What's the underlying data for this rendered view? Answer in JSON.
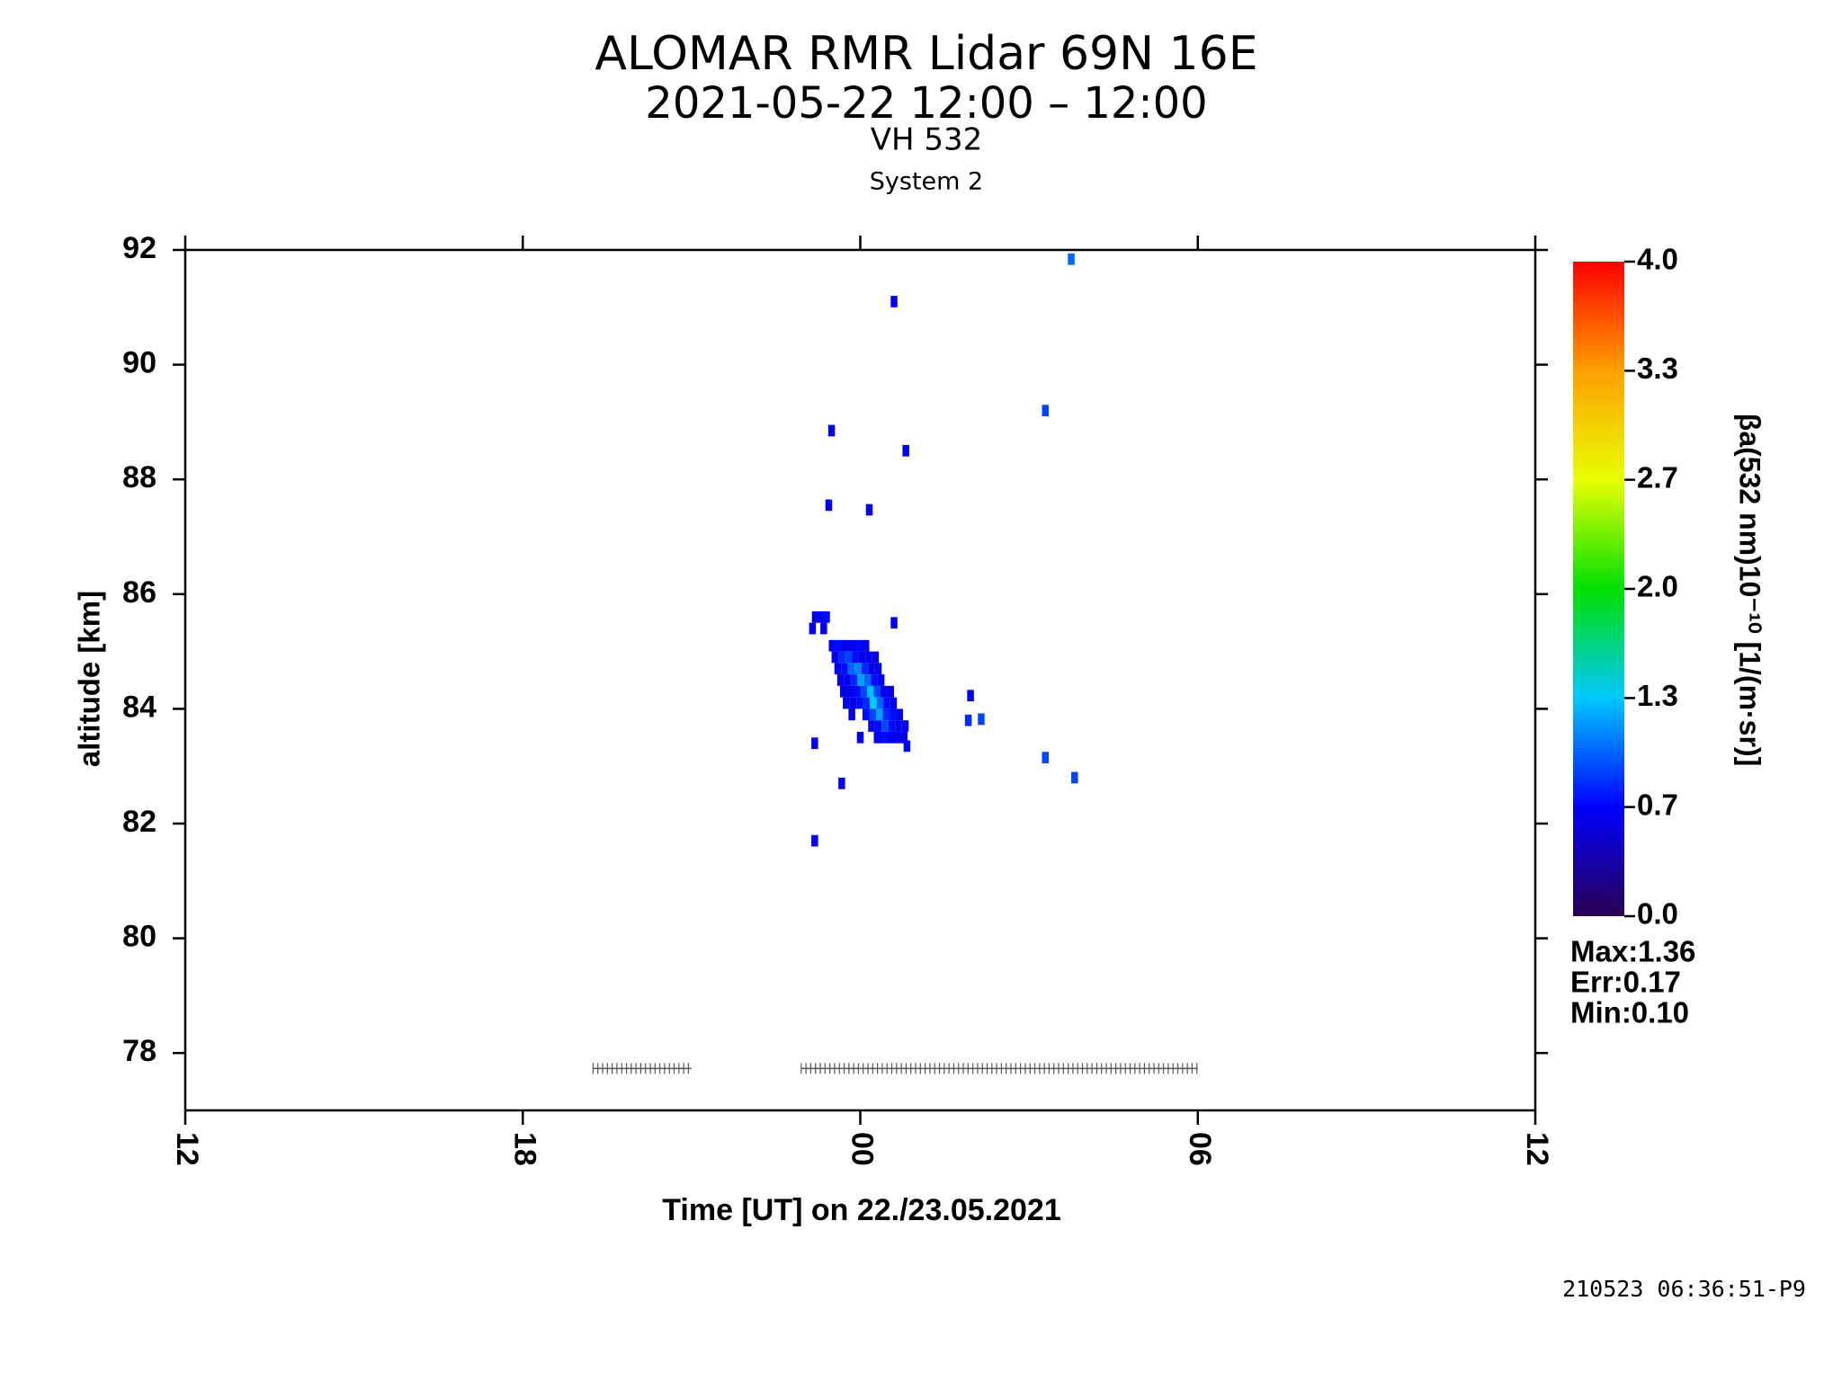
{
  "chart_data": {
    "type": "heatmap",
    "title": "ALOMAR RMR Lidar 69N 16E",
    "subtitle": "2021-05-22 12:00 – 12:00",
    "channel": "VH 532",
    "system": "System 2",
    "xlabel": "Time [UT] on 22./23.05.2021",
    "ylabel": "altitude [km]",
    "colorbar_label": "βa(532 nm)10⁻¹⁰ [1/(m·sr)]",
    "stats": [
      "Max:1.36",
      "Err:0.17",
      "Min:0.10"
    ],
    "footer": "210523 06:36:51-P9",
    "xlim": [
      0,
      24
    ],
    "xticks": [
      {
        "value": 0,
        "label": "12"
      },
      {
        "value": 6,
        "label": "18"
      },
      {
        "value": 12,
        "label": "00"
      },
      {
        "value": 18,
        "label": "06"
      },
      {
        "value": 24,
        "label": "12"
      }
    ],
    "ylim": [
      77,
      92
    ],
    "yticks": [
      78,
      80,
      82,
      84,
      86,
      88,
      90,
      92
    ],
    "clim": [
      0,
      4
    ],
    "cticks": [
      {
        "value": 0,
        "label": "0.0"
      },
      {
        "value": 0.667,
        "label": "0.7"
      },
      {
        "value": 1.333,
        "label": "1.3"
      },
      {
        "value": 2,
        "label": "2.0"
      },
      {
        "value": 2.667,
        "label": "2.7"
      },
      {
        "value": 3.333,
        "label": "3.3"
      },
      {
        "value": 4,
        "label": "4.0"
      }
    ],
    "colormap": [
      "#2a0050",
      "#0000ff",
      "#00c8ff",
      "#00e000",
      "#e8ff00",
      "#ffa000",
      "#ff0000"
    ],
    "profile_ranges": [
      [
        7.25,
        9.0
      ],
      [
        10.95,
        18.0
      ]
    ],
    "profile_altitude": 77.73,
    "cells": {
      "x": [
        15.75,
        12.6,
        15.29,
        11.49,
        12.81,
        11.44,
        12.16,
        12.6,
        13.96,
        13.92,
        14.15,
        11.19,
        15.29,
        15.81,
        11.67,
        11.19,
        12.83,
        11.2,
        11.3,
        11.4,
        11.15,
        11.35,
        11.5,
        11.62,
        11.74,
        11.86,
        11.98,
        12.1,
        11.55,
        11.67,
        11.79,
        11.91,
        12.03,
        12.15,
        12.27,
        11.6,
        11.72,
        11.84,
        11.96,
        12.08,
        12.2,
        12.32,
        11.65,
        11.77,
        11.89,
        12.01,
        12.13,
        12.25,
        12.37,
        11.7,
        11.82,
        11.94,
        12.06,
        12.18,
        12.3,
        12.42,
        12.54,
        11.75,
        11.87,
        11.99,
        12.11,
        12.23,
        12.35,
        12.47,
        12.59,
        11.85,
        12.1,
        12.22,
        12.34,
        12.46,
        12.58,
        12.7,
        12.2,
        12.32,
        12.44,
        12.56,
        12.68,
        12.8,
        12.0,
        12.3,
        12.42,
        12.54,
        12.66,
        12.78
      ],
      "y": [
        91.84,
        91.1,
        89.2,
        88.85,
        88.5,
        87.55,
        87.47,
        85.5,
        84.23,
        83.8,
        83.82,
        83.4,
        83.15,
        82.8,
        82.7,
        81.7,
        83.35,
        85.6,
        85.6,
        85.6,
        85.4,
        85.4,
        85.1,
        85.1,
        85.1,
        85.1,
        85.1,
        85.1,
        84.9,
        84.9,
        84.9,
        84.9,
        84.9,
        84.9,
        84.9,
        84.7,
        84.7,
        84.7,
        84.7,
        84.7,
        84.7,
        84.7,
        84.5,
        84.5,
        84.5,
        84.5,
        84.5,
        84.5,
        84.5,
        84.3,
        84.3,
        84.3,
        84.3,
        84.3,
        84.3,
        84.3,
        84.3,
        84.1,
        84.1,
        84.1,
        84.1,
        84.1,
        84.1,
        84.1,
        84.1,
        83.9,
        83.9,
        83.9,
        83.9,
        83.9,
        83.9,
        83.9,
        83.7,
        83.7,
        83.7,
        83.7,
        83.7,
        83.7,
        83.5,
        83.5,
        83.5,
        83.5,
        83.5,
        83.5
      ],
      "values": [
        1.0,
        0.6,
        0.9,
        0.6,
        0.6,
        0.6,
        0.6,
        0.6,
        0.6,
        0.8,
        0.9,
        0.6,
        0.9,
        0.9,
        0.6,
        0.6,
        0.6,
        0.6,
        0.6,
        0.7,
        0.6,
        0.6,
        0.6,
        0.7,
        0.6,
        0.6,
        0.7,
        0.6,
        0.6,
        0.8,
        0.9,
        0.7,
        0.6,
        0.6,
        0.6,
        0.6,
        0.7,
        1.0,
        1.1,
        0.8,
        0.6,
        0.6,
        0.6,
        0.6,
        0.8,
        1.2,
        1.0,
        0.7,
        0.6,
        0.6,
        0.6,
        0.7,
        0.9,
        1.3,
        0.9,
        0.6,
        0.6,
        0.6,
        0.6,
        0.7,
        0.8,
        1.36,
        1.0,
        0.7,
        0.6,
        0.6,
        0.7,
        0.9,
        1.2,
        0.8,
        0.7,
        0.6,
        0.6,
        0.7,
        0.9,
        0.7,
        0.6,
        0.6,
        0.6,
        0.6,
        0.7,
        0.6,
        0.6,
        0.6
      ]
    }
  }
}
